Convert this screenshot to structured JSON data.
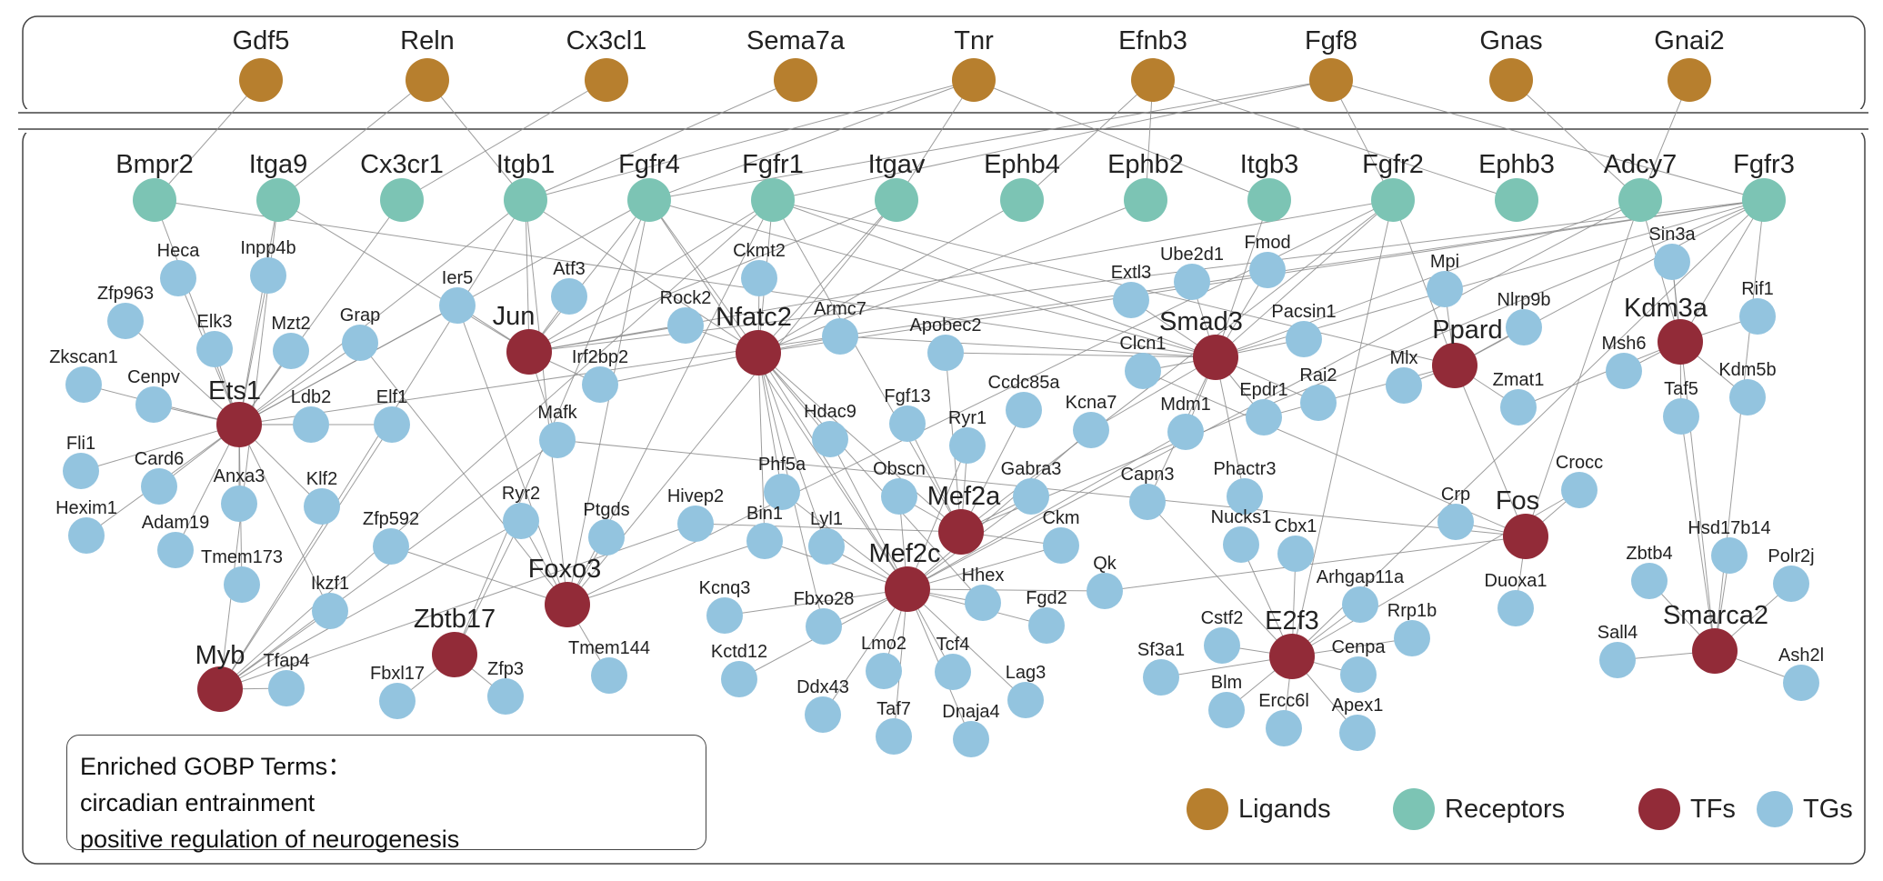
{
  "colors": {
    "ligand": "#b77f2e",
    "receptor": "#7cc4b4",
    "tf": "#922b38",
    "tg": "#93c4df"
  },
  "legend": {
    "ligands": "Ligands",
    "receptors": "Receptors",
    "tfs": "TFs",
    "tgs": "TGs"
  },
  "gobp": {
    "title": "Enriched GOBP Terms：",
    "terms": [
      "circadian entrainment",
      "positive regulation of neurogenesis"
    ]
  },
  "ligands": [
    "Gdf5",
    "Reln",
    "Cx3cl1",
    "Sema7a",
    "Tnr",
    "Efnb3",
    "Fgf8",
    "Gnas",
    "Gnai2"
  ],
  "receptors": [
    "Bmpr2",
    "Itga9",
    "Cx3cr1",
    "Itgb1",
    "Fgfr4",
    "Fgfr1",
    "Itgav",
    "Ephb4",
    "Ephb2",
    "Itgb3",
    "Fgfr2",
    "Ephb3",
    "Adcy7",
    "Fgfr3"
  ],
  "tfs": [
    "Ets1",
    "Jun",
    "Nfatc2",
    "Smad3",
    "Ppard",
    "Kdm3a",
    "Mef2a",
    "Mef2c",
    "Foxo3",
    "Zbtb17",
    "Myb",
    "Fos",
    "E2f3",
    "Smarca2"
  ],
  "tgs": [
    "Heca",
    "Inpp4b",
    "Zfp963",
    "Elk3",
    "Mzt2",
    "Grap",
    "Zkscan1",
    "Cenpv",
    "Ldb2",
    "Elf1",
    "Fli1",
    "Card6",
    "Anxa3",
    "Klf2",
    "Hexim1",
    "Adam19",
    "Tmem173",
    "Zfp592",
    "Ikzf1",
    "Tfap4",
    "Ier5",
    "Atf3",
    "Irf2bp2",
    "Mafk",
    "Ryr2",
    "Ptgds",
    "Fbxl17",
    "Zfp3",
    "Tmem144",
    "Ckmt2",
    "Rock2",
    "Armc7",
    "Apobec2",
    "Hdac9",
    "Fgf13",
    "Ryr1",
    "Ccdc85a",
    "Phf5a",
    "Obscn",
    "Gabra3",
    "Ckm",
    "Hivep2",
    "Bin1",
    "Lyl1",
    "Hhex",
    "Fgd2",
    "Kcnq3",
    "Fbxo28",
    "Kctd12",
    "Lmo2",
    "Tcf4",
    "Lag3",
    "Ddx43",
    "Taf7",
    "Dnaja4",
    "Extl3",
    "Ube2d1",
    "Fmod",
    "Pacsin1",
    "Clcn1",
    "Mdm1",
    "Epdr1",
    "Rai2",
    "Kcna7",
    "Capn3",
    "Phactr3",
    "Qk",
    "Mpi",
    "Nlrp9b",
    "Mlx",
    "Zmat1",
    "Sin3a",
    "Rif1",
    "Msh6",
    "Kdm5b",
    "Taf5",
    "Crocc",
    "Crp",
    "Duoxa1",
    "Nucks1",
    "Cbx1",
    "Arhgap11a",
    "Rrp1b",
    "Cstf2",
    "Sf3a1",
    "Cenpa",
    "Blm",
    "Ercc6l",
    "Apex1",
    "Zbtb4",
    "Hsd17b14",
    "Polr2j",
    "Sall4",
    "Ash2l"
  ],
  "edges": [
    [
      "Gdf5",
      "Bmpr2"
    ],
    [
      "Reln",
      "Itga9"
    ],
    [
      "Reln",
      "Itgb1"
    ],
    [
      "Cx3cl1",
      "Cx3cr1"
    ],
    [
      "Sema7a",
      "Itgb1"
    ],
    [
      "Tnr",
      "Itgb1"
    ],
    [
      "Tnr",
      "Itgav"
    ],
    [
      "Tnr",
      "Fgfr4"
    ],
    [
      "Efnb3",
      "Ephb2"
    ],
    [
      "Efnb3",
      "Ephb4"
    ],
    [
      "Efnb3",
      "Ephb3"
    ],
    [
      "Fgf8",
      "Fgfr2"
    ],
    [
      "Fgf8",
      "Fgfr1"
    ],
    [
      "Fgf8",
      "Fgfr3"
    ],
    [
      "Fgf8",
      "Fgfr4"
    ],
    [
      "Gnas",
      "Adcy7"
    ],
    [
      "Gnai2",
      "Adcy7"
    ],
    [
      "Tnr",
      "Itgb3"
    ],
    [
      "Bmpr2",
      "Ets1"
    ],
    [
      "Itga9",
      "Ets1"
    ],
    [
      "Itga9",
      "Myb"
    ],
    [
      "Itga9",
      "Jun"
    ],
    [
      "Cx3cr1",
      "Ets1"
    ],
    [
      "Itgb1",
      "Jun"
    ],
    [
      "Itgb1",
      "Ets1"
    ],
    [
      "Itgb1",
      "Nfatc2"
    ],
    [
      "Itgb1",
      "Foxo3"
    ],
    [
      "Itgb1",
      "Myb"
    ],
    [
      "Fgfr4",
      "Jun"
    ],
    [
      "Fgfr4",
      "Nfatc2"
    ],
    [
      "Fgfr4",
      "Smad3"
    ],
    [
      "Fgfr4",
      "Ets1"
    ],
    [
      "Fgfr4",
      "Foxo3"
    ],
    [
      "Fgfr4",
      "Zbtb17"
    ],
    [
      "Fgfr4",
      "Mef2c"
    ],
    [
      "Fgfr1",
      "Jun"
    ],
    [
      "Fgfr1",
      "Nfatc2"
    ],
    [
      "Fgfr1",
      "Smad3"
    ],
    [
      "Fgfr1",
      "Ppard"
    ],
    [
      "Fgfr1",
      "Foxo3"
    ],
    [
      "Fgfr1",
      "Mef2a"
    ],
    [
      "Fgfr1",
      "Myb"
    ],
    [
      "Itgav",
      "Jun"
    ],
    [
      "Itgav",
      "Nfatc2"
    ],
    [
      "Itgav",
      "Foxo3"
    ],
    [
      "Ephb4",
      "Nfatc2"
    ],
    [
      "Fgfr2",
      "Jun"
    ],
    [
      "Fgfr2",
      "Smad3"
    ],
    [
      "Fgfr2",
      "Ppard"
    ],
    [
      "Fgfr2",
      "E2f3"
    ],
    [
      "Fgfr2",
      "Mef2a"
    ],
    [
      "Fgfr2",
      "Foxo3"
    ],
    [
      "Adcy7",
      "Kdm3a"
    ],
    [
      "Adcy7",
      "Fos"
    ],
    [
      "Adcy7",
      "Smad3"
    ],
    [
      "Adcy7",
      "Mef2c"
    ],
    [
      "Fgfr3",
      "Jun"
    ],
    [
      "Fgfr3",
      "Smad3"
    ],
    [
      "Fgfr3",
      "Kdm3a"
    ],
    [
      "Fgfr3",
      "Ppard"
    ],
    [
      "Fgfr3",
      "E2f3"
    ],
    [
      "Fgfr3",
      "Mef2a"
    ],
    [
      "Fgfr3",
      "Nfatc2"
    ],
    [
      "Fgfr3",
      "Ets1"
    ],
    [
      "Fgfr3",
      "Smarca2"
    ],
    [
      "Itgb3",
      "Smad3"
    ],
    [
      "Ephb2",
      "Nfatc2"
    ],
    [
      "Bmpr2",
      "Smad3"
    ],
    [
      "Ets1",
      "Heca"
    ],
    [
      "Ets1",
      "Inpp4b"
    ],
    [
      "Ets1",
      "Zfp963"
    ],
    [
      "Ets1",
      "Elk3"
    ],
    [
      "Ets1",
      "Mzt2"
    ],
    [
      "Ets1",
      "Grap"
    ],
    [
      "Ets1",
      "Zkscan1"
    ],
    [
      "Ets1",
      "Cenpv"
    ],
    [
      "Ets1",
      "Ldb2"
    ],
    [
      "Ets1",
      "Elf1"
    ],
    [
      "Ets1",
      "Fli1"
    ],
    [
      "Ets1",
      "Card6"
    ],
    [
      "Ets1",
      "Anxa3"
    ],
    [
      "Ets1",
      "Klf2"
    ],
    [
      "Ets1",
      "Hexim1"
    ],
    [
      "Ets1",
      "Adam19"
    ],
    [
      "Ets1",
      "Tmem173"
    ],
    [
      "Ets1",
      "Ikzf1"
    ],
    [
      "Ets1",
      "Ier5"
    ],
    [
      "Jun",
      "Ier5"
    ],
    [
      "Jun",
      "Atf3"
    ],
    [
      "Jun",
      "Irf2bp2"
    ],
    [
      "Jun",
      "Mafk"
    ],
    [
      "Jun",
      "Rock2"
    ],
    [
      "Myb",
      "Tfap4"
    ],
    [
      "Myb",
      "Elf1"
    ],
    [
      "Myb",
      "Mafk"
    ],
    [
      "Myb",
      "Ryr2"
    ],
    [
      "Myb",
      "Hivep2"
    ],
    [
      "Myb",
      "Ikzf1"
    ],
    [
      "Zbtb17",
      "Fbxl17"
    ],
    [
      "Zbtb17",
      "Zfp3"
    ],
    [
      "Zbtb17",
      "Ryr2"
    ],
    [
      "Foxo3",
      "Tmem144"
    ],
    [
      "Foxo3",
      "Ptgds"
    ],
    [
      "Foxo3",
      "Ryr2"
    ],
    [
      "Foxo3",
      "Zfp592"
    ],
    [
      "Foxo3",
      "Bin1"
    ],
    [
      "Foxo3",
      "Grap"
    ],
    [
      "Foxo3",
      "Ier5"
    ],
    [
      "Nfatc2",
      "Ckmt2"
    ],
    [
      "Nfatc2",
      "Rock2"
    ],
    [
      "Nfatc2",
      "Armc7"
    ],
    [
      "Nfatc2",
      "Hdac9"
    ],
    [
      "Nfatc2",
      "Mef2c"
    ],
    [
      "Nfatc2",
      "Mef2a"
    ],
    [
      "Nfatc2",
      "Irf2bp2"
    ],
    [
      "Nfatc2",
      "Lyl1"
    ],
    [
      "Nfatc2",
      "Bin1"
    ],
    [
      "Nfatc2",
      "Hhex"
    ],
    [
      "Nfatc2",
      "Fbxo28"
    ],
    [
      "Nfatc2",
      "Phf5a"
    ],
    [
      "Mef2a",
      "Fgf13"
    ],
    [
      "Mef2a",
      "Ryr1"
    ],
    [
      "Mef2a",
      "Gabra3"
    ],
    [
      "Mef2a",
      "Ckm"
    ],
    [
      "Mef2a",
      "Obscn"
    ],
    [
      "Mef2a",
      "Ccdc85a"
    ],
    [
      "Mef2a",
      "Hivep2"
    ],
    [
      "Mef2a",
      "Apobec2"
    ],
    [
      "Mef2c",
      "Hdac9"
    ],
    [
      "Mef2c",
      "Phf5a"
    ],
    [
      "Mef2c",
      "Obscn"
    ],
    [
      "Mef2c",
      "Bin1"
    ],
    [
      "Mef2c",
      "Lyl1"
    ],
    [
      "Mef2c",
      "Hhex"
    ],
    [
      "Mef2c",
      "Fgd2"
    ],
    [
      "Mef2c",
      "Kcnq3"
    ],
    [
      "Mef2c",
      "Fbxo28"
    ],
    [
      "Mef2c",
      "Kctd12"
    ],
    [
      "Mef2c",
      "Lmo2"
    ],
    [
      "Mef2c",
      "Tcf4"
    ],
    [
      "Mef2c",
      "Lag3"
    ],
    [
      "Mef2c",
      "Ddx43"
    ],
    [
      "Mef2c",
      "Taf7"
    ],
    [
      "Mef2c",
      "Dnaja4"
    ],
    [
      "Mef2c",
      "Ckm"
    ],
    [
      "Mef2c",
      "Gabra3"
    ],
    [
      "Mef2c",
      "Ryr1"
    ],
    [
      "Mef2c",
      "Qk"
    ],
    [
      "Mef2c",
      "Kcna7"
    ],
    [
      "Mef2c",
      "Mdm1"
    ],
    [
      "Smad3",
      "Extl3"
    ],
    [
      "Smad3",
      "Ube2d1"
    ],
    [
      "Smad3",
      "Fmod"
    ],
    [
      "Smad3",
      "Pacsin1"
    ],
    [
      "Smad3",
      "Clcn1"
    ],
    [
      "Smad3",
      "Mdm1"
    ],
    [
      "Smad3",
      "Epdr1"
    ],
    [
      "Smad3",
      "Rai2"
    ],
    [
      "Smad3",
      "Kcna7"
    ],
    [
      "Smad3",
      "Capn3"
    ],
    [
      "Smad3",
      "Phactr3"
    ],
    [
      "Smad3",
      "Armc7"
    ],
    [
      "Smad3",
      "Apobec2"
    ],
    [
      "Ppard",
      "Mpi"
    ],
    [
      "Ppard",
      "Nlrp9b"
    ],
    [
      "Ppard",
      "Mlx"
    ],
    [
      "Ppard",
      "Zmat1"
    ],
    [
      "Ppard",
      "Fos"
    ],
    [
      "Ppard",
      "Epdr1"
    ],
    [
      "Kdm3a",
      "Sin3a"
    ],
    [
      "Kdm3a",
      "Rif1"
    ],
    [
      "Kdm3a",
      "Msh6"
    ],
    [
      "Kdm3a",
      "Kdm5b"
    ],
    [
      "Kdm3a",
      "Taf5"
    ],
    [
      "Kdm3a",
      "Zmat1"
    ],
    [
      "Fos",
      "Crocc"
    ],
    [
      "Fos",
      "Crp"
    ],
    [
      "Fos",
      "Duoxa1"
    ],
    [
      "Fos",
      "Clcn1"
    ],
    [
      "Fos",
      "Mafk"
    ],
    [
      "Fos",
      "Qk"
    ],
    [
      "E2f3",
      "Nucks1"
    ],
    [
      "E2f3",
      "Cbx1"
    ],
    [
      "E2f3",
      "Arhgap11a"
    ],
    [
      "E2f3",
      "Rrp1b"
    ],
    [
      "E2f3",
      "Cstf2"
    ],
    [
      "E2f3",
      "Sf3a1"
    ],
    [
      "E2f3",
      "Cenpa"
    ],
    [
      "E2f3",
      "Blm"
    ],
    [
      "E2f3",
      "Ercc6l"
    ],
    [
      "E2f3",
      "Apex1"
    ],
    [
      "E2f3",
      "Capn3"
    ],
    [
      "E2f3",
      "Crocc"
    ],
    [
      "Smarca2",
      "Zbtb4"
    ],
    [
      "Smarca2",
      "Hsd17b14"
    ],
    [
      "Smarca2",
      "Polr2j"
    ],
    [
      "Smarca2",
      "Sall4"
    ],
    [
      "Smarca2",
      "Ash2l"
    ],
    [
      "Smarca2",
      "Sin3a"
    ],
    [
      "Smarca2",
      "Taf5"
    ]
  ]
}
